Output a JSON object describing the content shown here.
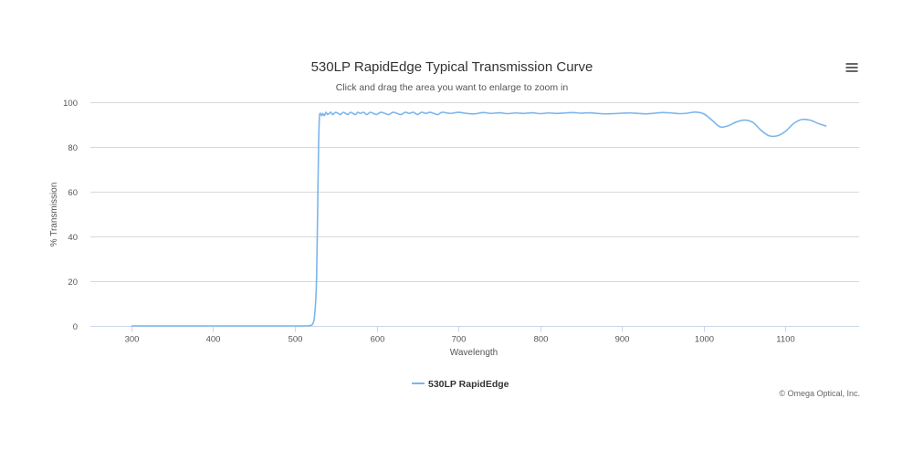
{
  "chart_data": {
    "type": "line",
    "title": "530LP RapidEdge Typical Transmission Curve",
    "subtitle": "Click and drag the area you want to enlarge to zoom in",
    "xlabel": "Wavelength",
    "ylabel": "% Transmission",
    "xlim": [
      250,
      1190
    ],
    "ylim": [
      0,
      100
    ],
    "x_ticks": [
      300,
      400,
      500,
      600,
      700,
      800,
      900,
      1000,
      1100
    ],
    "y_ticks": [
      0,
      20,
      40,
      60,
      80,
      100
    ],
    "grid": "horizontal",
    "legend_position": "bottom-center",
    "series": [
      {
        "name": "530LP RapidEdge",
        "color": "#7cb5ec",
        "x": [
          300,
          350,
          400,
          450,
          500,
          515,
          520,
          522,
          524,
          526,
          527,
          528,
          529,
          530,
          531,
          532,
          533,
          534,
          536,
          538,
          540,
          542,
          544,
          546,
          548,
          550,
          553,
          556,
          559,
          562,
          565,
          568,
          571,
          574,
          577,
          580,
          584,
          588,
          592,
          596,
          600,
          605,
          610,
          615,
          620,
          625,
          630,
          635,
          640,
          645,
          650,
          655,
          660,
          665,
          670,
          675,
          680,
          690,
          700,
          710,
          720,
          730,
          740,
          750,
          760,
          770,
          780,
          790,
          800,
          810,
          820,
          830,
          840,
          850,
          860,
          870,
          880,
          890,
          900,
          910,
          920,
          930,
          940,
          950,
          960,
          970,
          980,
          990,
          1000,
          1010,
          1020,
          1030,
          1040,
          1050,
          1060,
          1070,
          1080,
          1090,
          1100,
          1110,
          1120,
          1130,
          1140,
          1150
        ],
        "y": [
          0,
          0,
          0,
          0,
          0,
          0,
          0.3,
          1,
          4,
          15,
          30,
          55,
          80,
          93,
          95,
          94.5,
          94,
          95,
          94,
          95.5,
          94.5,
          95,
          95.5,
          94.5,
          95,
          95.5,
          95,
          94.5,
          95.5,
          95,
          94.5,
          95.5,
          95,
          94.5,
          95.5,
          95,
          95.5,
          94.5,
          95.5,
          95,
          94.5,
          95.5,
          95,
          94.5,
          95.5,
          95,
          94.5,
          95.5,
          95,
          95.5,
          94.5,
          95.5,
          95,
          95.5,
          95,
          94.5,
          95.5,
          95,
          95.5,
          95,
          94.8,
          95.4,
          95,
          95.3,
          94.9,
          95.2,
          95,
          95.3,
          94.9,
          95.2,
          95,
          95.2,
          95.4,
          95.1,
          95.3,
          95,
          94.8,
          94.9,
          95.1,
          95.2,
          95,
          94.8,
          95.1,
          95.4,
          95.2,
          94.9,
          95.1,
          95.6,
          94.8,
          92,
          89,
          89.5,
          91.2,
          92,
          91,
          87.5,
          85,
          85,
          87,
          90.5,
          92.3,
          92,
          90.5,
          89.3
        ]
      }
    ]
  },
  "credits": "© Omega Optical, Inc.",
  "menu": {
    "icon": "hamburger-menu-icon"
  }
}
